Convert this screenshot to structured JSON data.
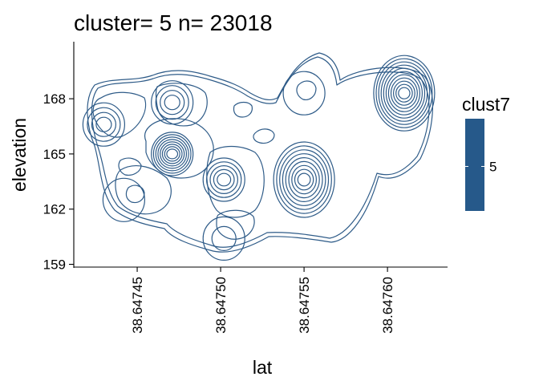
{
  "chart_data": {
    "type": "contour",
    "title": "cluster= 5 n= 23018",
    "xlabel": "lat",
    "ylabel": "elevation",
    "xticks": [
      "38.64745",
      "38.64750",
      "38.64755",
      "38.64760"
    ],
    "xtick_values": [
      38.64745,
      38.6475,
      38.64755,
      38.6476
    ],
    "yticks": [
      "159",
      "162",
      "165",
      "168"
    ],
    "ytick_values": [
      159,
      162,
      165,
      168
    ],
    "xlim": [
      38.647412,
      38.647636
    ],
    "ylim": [
      158.85,
      171.1
    ],
    "grid": false,
    "line_color": "#2E5B88",
    "legend": {
      "title": "clust7",
      "placement": "right",
      "fill_color": "#26598A",
      "labels": [
        "5"
      ],
      "values": [
        5
      ]
    },
    "density_peaks": [
      {
        "lat": 38.64743,
        "elevation": 166.6,
        "levels": 4
      },
      {
        "lat": 38.647471,
        "elevation": 167.8,
        "levels": 4
      },
      {
        "lat": 38.647471,
        "elevation": 165.0,
        "levels": 8
      },
      {
        "lat": 38.647502,
        "elevation": 163.6,
        "levels": 5
      },
      {
        "lat": 38.647502,
        "elevation": 160.4,
        "levels": 2
      },
      {
        "lat": 38.64755,
        "elevation": 163.6,
        "levels": 9
      },
      {
        "lat": 38.64761,
        "elevation": 168.3,
        "levels": 11
      },
      {
        "lat": 38.64755,
        "elevation": 168.3,
        "levels": 1
      },
      {
        "lat": 38.647442,
        "elevation": 162.5,
        "levels": 1
      }
    ]
  }
}
